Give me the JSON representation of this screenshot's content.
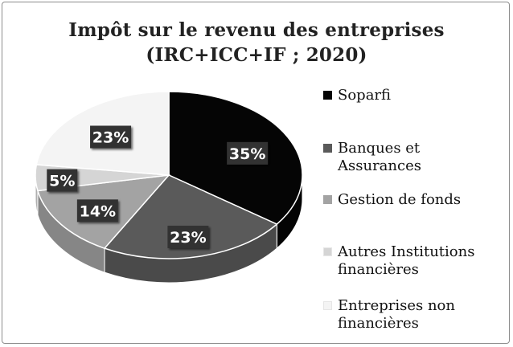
{
  "chart_data": {
    "type": "pie",
    "title": "Impôt sur le revenu des entreprises",
    "subtitle": "(IRC+ICC+IF ; 2020)",
    "labels": [
      "Soparfi",
      "Banques et Assurances",
      "Gestion de fonds",
      "Autres Institutions financières",
      "Entreprises non financières"
    ],
    "legend_lines": [
      [
        "Soparfi"
      ],
      [
        "Banques et",
        "Assurances"
      ],
      [
        "Gestion de fonds"
      ],
      [
        "Autres Institutions",
        "financières"
      ],
      [
        "Entreprises non",
        "financières"
      ]
    ],
    "values": [
      35,
      23,
      14,
      5,
      23
    ],
    "data_labels": [
      "35%",
      "23%",
      "14%",
      "5%",
      "23%"
    ],
    "colors": [
      "#050505",
      "#5a5a5a",
      "#a3a3a3",
      "#d5d5d5",
      "#f4f4f4"
    ],
    "legend_position": "right",
    "style": "3d-pie"
  }
}
